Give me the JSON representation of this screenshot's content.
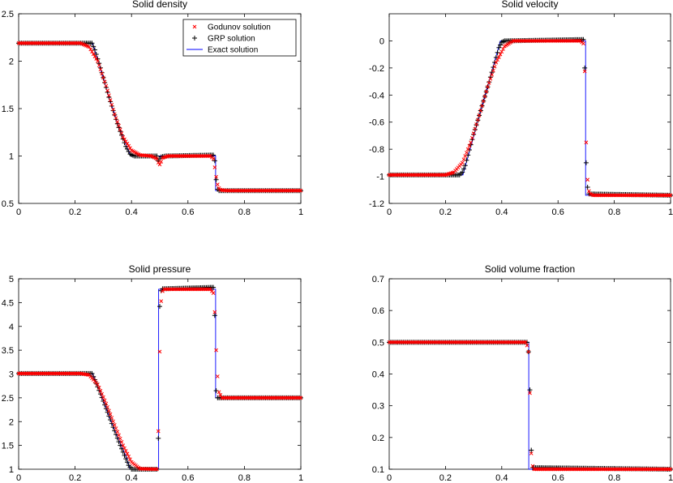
{
  "colors": {
    "godunov": "#ff0000",
    "grp": "#000000",
    "exact": "#0000ff"
  },
  "legend": {
    "placement": "top-right",
    "entries": [
      {
        "key": "godunov",
        "label": "Godunov solution",
        "marker": "x"
      },
      {
        "key": "grp",
        "label": "GRP solution",
        "marker": "+"
      },
      {
        "key": "exact",
        "label": "Exact solution",
        "marker": "line"
      }
    ]
  },
  "chart_data": [
    {
      "type": "line",
      "title": "Solid density",
      "xlim": [
        0,
        1
      ],
      "ylim": [
        0.5,
        2.5
      ],
      "xticks": [
        0,
        0.2,
        0.4,
        0.6,
        0.8,
        1
      ],
      "yticks": [
        0.5,
        1,
        1.5,
        2,
        2.5
      ],
      "xticklabels": [
        "0",
        "0.2",
        "0.4",
        "0.6",
        "0.8",
        "1"
      ],
      "yticklabels": [
        "0.5",
        "1",
        "1.5",
        "2",
        "2.5"
      ],
      "series": [
        {
          "name": "Exact solution",
          "key": "exact",
          "x": [
            0,
            0.262,
            0.29,
            0.32,
            0.35,
            0.38,
            0.395,
            0.4,
            0.42,
            0.5,
            0.6,
            0.698,
            0.698,
            1
          ],
          "y": [
            2.19,
            2.19,
            1.92,
            1.62,
            1.35,
            1.12,
            1.02,
            1.0,
            1.0,
            1.0,
            1.0,
            1.0,
            0.635,
            0.635
          ]
        },
        {
          "name": "GRP solution",
          "key": "grp",
          "x": [
            0,
            0.26,
            0.27,
            0.29,
            0.32,
            0.35,
            0.38,
            0.395,
            0.41,
            0.49,
            0.495,
            0.5,
            0.505,
            0.52,
            0.69,
            0.695,
            0.7,
            0.705,
            0.71,
            1
          ],
          "y": [
            2.19,
            2.19,
            2.12,
            1.93,
            1.62,
            1.34,
            1.1,
            1.02,
            1.0,
            1.0,
            0.95,
            0.97,
            0.99,
            1.0,
            1.01,
            0.95,
            0.75,
            0.65,
            0.635,
            0.635
          ]
        },
        {
          "name": "Godunov solution",
          "key": "godunov",
          "x": [
            0,
            0.22,
            0.25,
            0.28,
            0.31,
            0.34,
            0.37,
            0.4,
            0.43,
            0.47,
            0.49,
            0.495,
            0.5,
            0.505,
            0.51,
            0.53,
            0.68,
            0.69,
            0.695,
            0.7,
            0.705,
            0.71,
            0.715,
            0.72,
            0.74,
            1
          ],
          "y": [
            2.19,
            2.19,
            2.15,
            2.0,
            1.74,
            1.44,
            1.2,
            1.06,
            1.01,
            1.0,
            0.97,
            0.93,
            0.91,
            0.94,
            0.98,
            1.0,
            1.0,
            0.97,
            0.88,
            0.78,
            0.7,
            0.66,
            0.645,
            0.64,
            0.635,
            0.635
          ]
        }
      ]
    },
    {
      "type": "line",
      "title": "Solid velocity",
      "xlim": [
        0,
        1
      ],
      "ylim": [
        -1.2,
        0.2
      ],
      "xticks": [
        0,
        0.2,
        0.4,
        0.6,
        0.8,
        1
      ],
      "yticks": [
        -1.2,
        -1,
        -0.8,
        -0.6,
        -0.4,
        -0.2,
        0
      ],
      "xticklabels": [
        "0",
        "0.2",
        "0.4",
        "0.6",
        "0.8",
        "1"
      ],
      "yticklabels": [
        "-1.2",
        "-1",
        "-0.8",
        "-0.6",
        "-0.4",
        "-0.2",
        "0"
      ],
      "series": [
        {
          "name": "Exact solution",
          "key": "exact",
          "x": [
            0,
            0.262,
            0.395,
            0.698,
            0.698,
            1
          ],
          "y": [
            -0.99,
            -0.99,
            0.0,
            0.0,
            -1.14,
            -1.14
          ]
        },
        {
          "name": "GRP solution",
          "key": "grp",
          "x": [
            0,
            0.25,
            0.26,
            0.27,
            0.3,
            0.35,
            0.39,
            0.4,
            0.41,
            0.69,
            0.693,
            0.695,
            0.697,
            0.7,
            0.703,
            0.71,
            1
          ],
          "y": [
            -0.99,
            -0.99,
            -0.97,
            -0.92,
            -0.69,
            -0.34,
            -0.05,
            -0.01,
            0.0,
            0.01,
            0.02,
            -0.2,
            -0.52,
            -0.9,
            -1.06,
            -1.13,
            -1.14
          ]
        },
        {
          "name": "Godunov solution",
          "key": "godunov",
          "x": [
            0,
            0.2,
            0.23,
            0.26,
            0.29,
            0.32,
            0.35,
            0.38,
            0.41,
            0.44,
            0.46,
            0.68,
            0.69,
            0.693,
            0.697,
            0.7,
            0.704,
            0.708,
            0.715,
            0.725,
            1
          ],
          "y": [
            -0.99,
            -0.99,
            -0.97,
            -0.9,
            -0.75,
            -0.55,
            -0.34,
            -0.16,
            -0.04,
            0.0,
            0.0,
            0.0,
            -0.02,
            -0.1,
            -0.35,
            -0.75,
            -1.0,
            -1.1,
            -1.13,
            -1.14,
            -1.14
          ]
        }
      ]
    },
    {
      "type": "line",
      "title": "Solid pressure",
      "xlim": [
        0,
        1
      ],
      "ylim": [
        1,
        5
      ],
      "xticks": [
        0,
        0.2,
        0.4,
        0.6,
        0.8,
        1
      ],
      "yticks": [
        1,
        1.5,
        2,
        2.5,
        3,
        3.5,
        4,
        4.5,
        5
      ],
      "xticklabels": [
        "0",
        "0.2",
        "0.4",
        "0.6",
        "0.8",
        "1"
      ],
      "yticklabels": [
        "1",
        "1.5",
        "2",
        "2.5",
        "3",
        "3.5",
        "4",
        "4.5",
        "5"
      ],
      "series": [
        {
          "name": "Exact solution",
          "key": "exact",
          "x": [
            0,
            0.262,
            0.29,
            0.32,
            0.35,
            0.38,
            0.395,
            0.496,
            0.496,
            0.698,
            0.698,
            1
          ],
          "y": [
            3.01,
            3.01,
            2.6,
            2.12,
            1.68,
            1.28,
            1.0,
            1.0,
            4.78,
            4.78,
            2.5,
            2.5
          ]
        },
        {
          "name": "GRP solution",
          "key": "grp",
          "x": [
            0,
            0.26,
            0.27,
            0.3,
            0.33,
            0.36,
            0.39,
            0.4,
            0.49,
            0.495,
            0.498,
            0.5,
            0.505,
            0.51,
            0.69,
            0.693,
            0.697,
            0.7,
            0.705,
            1
          ],
          "y": [
            3.01,
            3.01,
            2.88,
            2.43,
            1.96,
            1.5,
            1.08,
            1.0,
            1.0,
            1.65,
            3.2,
            4.42,
            4.75,
            4.79,
            4.82,
            4.86,
            3.6,
            2.65,
            2.5,
            2.5
          ]
        },
        {
          "name": "Godunov solution",
          "key": "godunov",
          "x": [
            0,
            0.22,
            0.25,
            0.28,
            0.31,
            0.34,
            0.37,
            0.4,
            0.43,
            0.49,
            0.495,
            0.5,
            0.505,
            0.51,
            0.515,
            0.68,
            0.69,
            0.695,
            0.7,
            0.705,
            0.71,
            0.72,
            1
          ],
          "y": [
            3.01,
            3.01,
            2.98,
            2.78,
            2.38,
            1.93,
            1.5,
            1.15,
            1.01,
            1.0,
            1.8,
            3.47,
            4.53,
            4.74,
            4.78,
            4.78,
            4.7,
            4.3,
            3.5,
            2.95,
            2.62,
            2.5,
            2.5
          ]
        }
      ]
    },
    {
      "type": "line",
      "title": "Solid volume fraction",
      "xlim": [
        0,
        1
      ],
      "ylim": [
        0.1,
        0.7
      ],
      "xticks": [
        0,
        0.2,
        0.4,
        0.6,
        0.8,
        1
      ],
      "yticks": [
        0.1,
        0.2,
        0.3,
        0.4,
        0.5,
        0.6,
        0.7
      ],
      "xticklabels": [
        "0",
        "0.2",
        "0.4",
        "0.6",
        "0.8",
        "1"
      ],
      "yticklabels": [
        "0.1",
        "0.2",
        "0.3",
        "0.4",
        "0.5",
        "0.6",
        "0.7"
      ],
      "series": [
        {
          "name": "Exact solution",
          "key": "exact",
          "x": [
            0,
            0.496,
            0.496,
            1
          ],
          "y": [
            0.5,
            0.5,
            0.1,
            0.1
          ]
        },
        {
          "name": "GRP solution",
          "key": "grp",
          "x": [
            0,
            0.49,
            0.495,
            0.5,
            0.505,
            0.51,
            1
          ],
          "y": [
            0.5,
            0.5,
            0.47,
            0.35,
            0.16,
            0.105,
            0.1
          ]
        },
        {
          "name": "Godunov solution",
          "key": "godunov",
          "x": [
            0,
            0.485,
            0.49,
            0.495,
            0.5,
            0.505,
            0.51,
            0.515,
            1
          ],
          "y": [
            0.5,
            0.5,
            0.49,
            0.47,
            0.34,
            0.15,
            0.11,
            0.1,
            0.1
          ]
        }
      ]
    }
  ]
}
